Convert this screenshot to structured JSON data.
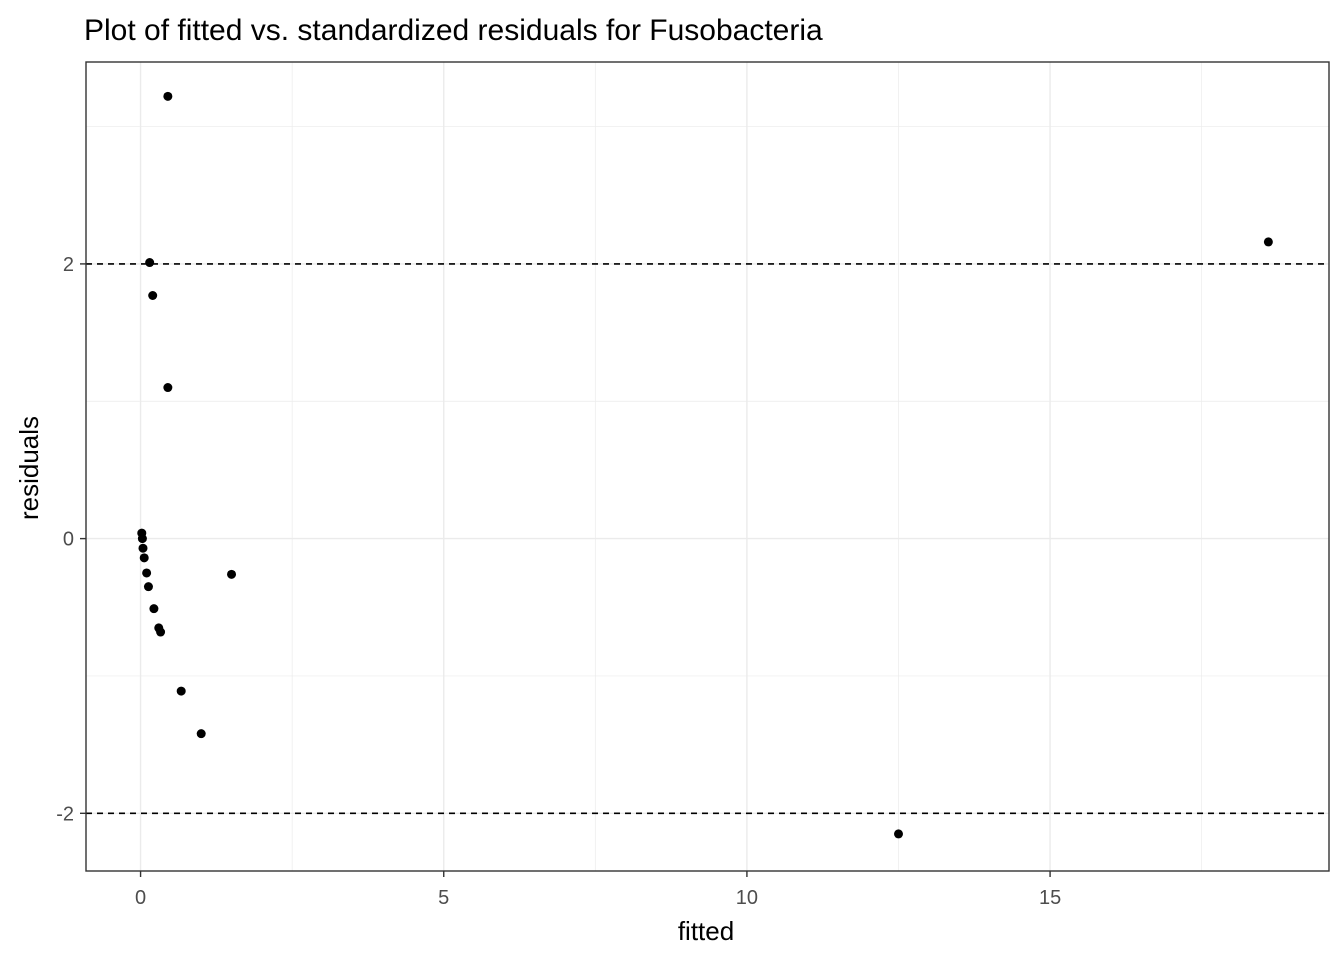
{
  "chart_data": {
    "type": "scatter",
    "title": "Plot of fitted vs. standardized residuals for Fusobacteria",
    "xlabel": "fitted",
    "ylabel": "residuals",
    "xlim": [
      -0.9,
      19.6
    ],
    "ylim": [
      -2.42,
      3.47
    ],
    "x_ticks": [
      0,
      5,
      10,
      15
    ],
    "y_ticks": [
      -2,
      0,
      2
    ],
    "x_tick_labels": [
      "0",
      "5",
      "10",
      "15"
    ],
    "y_tick_labels": [
      "-2",
      "0",
      "2"
    ],
    "grid": true,
    "reference_lines": [
      2,
      -2
    ],
    "points": [
      {
        "x": 0.45,
        "y": 3.22
      },
      {
        "x": 18.6,
        "y": 2.16
      },
      {
        "x": 0.15,
        "y": 2.01
      },
      {
        "x": 0.2,
        "y": 1.77
      },
      {
        "x": 0.45,
        "y": 1.1
      },
      {
        "x": 0.02,
        "y": 0.04
      },
      {
        "x": 0.03,
        "y": 0.0
      },
      {
        "x": 0.04,
        "y": -0.07
      },
      {
        "x": 0.06,
        "y": -0.14
      },
      {
        "x": 0.1,
        "y": -0.25
      },
      {
        "x": 0.13,
        "y": -0.35
      },
      {
        "x": 1.5,
        "y": -0.26
      },
      {
        "x": 0.22,
        "y": -0.51
      },
      {
        "x": 0.3,
        "y": -0.65
      },
      {
        "x": 0.33,
        "y": -0.68
      },
      {
        "x": 0.67,
        "y": -1.11
      },
      {
        "x": 1.0,
        "y": -1.42
      },
      {
        "x": 12.5,
        "y": -2.15
      }
    ]
  }
}
